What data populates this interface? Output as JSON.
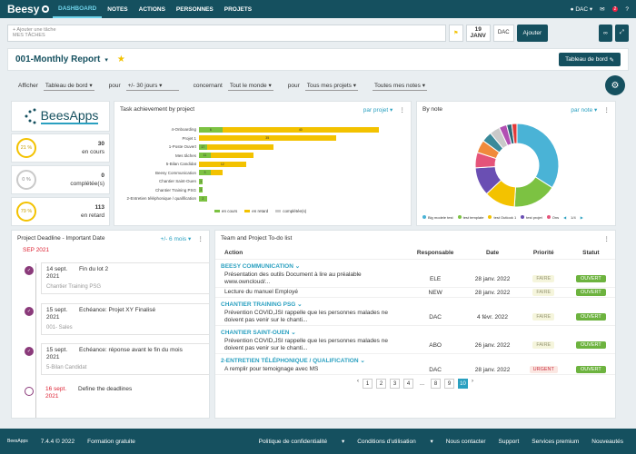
{
  "nav": {
    "logo": "Beesy",
    "items": [
      "DASHBOARD",
      "NOTES",
      "ACTIONS",
      "PERSONNES",
      "PROJETS"
    ],
    "user": "DAC",
    "badge": "2"
  },
  "taskbar": {
    "placeholder": "+ Ajouter une tâche",
    "sub_placeholder": "MES TÂCHES",
    "date_day": "19",
    "date_month": "JANV",
    "owner": "DAC",
    "add_label": "Ajouter"
  },
  "report": {
    "title": "001-Monthly Report",
    "dashboard_btn": "Tableau de bord"
  },
  "filters": {
    "afficher_label": "Afficher",
    "afficher_value": "Tableau de bord",
    "pour_label": "pour",
    "pour_value": "+/- 30 jours",
    "concernant_label": "concernant",
    "concernant_value": "Tout le monde",
    "pour2_label": "pour",
    "projects_value": "Tous mes projets",
    "notes_value": "Toutes mes notes"
  },
  "logo_panel": {
    "brand": "BeesApps"
  },
  "stats": [
    {
      "pct": "21 %",
      "value": "30",
      "label": "en cours",
      "color": "#f3c200"
    },
    {
      "pct": "0 %",
      "value": "0",
      "label": "complétée(s)",
      "color": "#c9c9c9"
    },
    {
      "pct": "79 %",
      "value": "113",
      "label": "en retard",
      "color": "#f3c200"
    }
  ],
  "task_chart": {
    "title": "Task achievement by project",
    "filter": "par projet",
    "legend": [
      "en cours",
      "en retard",
      "complétée(s)"
    ],
    "colors": [
      "#7cc242",
      "#f3c200",
      "#c9c9c9"
    ]
  },
  "chart_data": {
    "type": "bar",
    "orientation": "horizontal",
    "stacked": true,
    "categories": [
      "4-Onboarding",
      "Projet 1",
      "1-Poste Ouvert",
      "Mes tâches",
      "5-Bilan Candidat",
      "Beesy Communication",
      "Chantier Saint-Ouen",
      "Chantier Training PSG",
      "2-Entretien téléphonique / qualification"
    ],
    "series": [
      {
        "name": "en cours",
        "values": [
          6,
          0,
          2,
          3,
          0,
          3,
          1,
          1,
          2
        ]
      },
      {
        "name": "en retard",
        "values": [
          40,
          35,
          17,
          11,
          12,
          3,
          0,
          0,
          0
        ]
      },
      {
        "name": "complétée(s)",
        "values": [
          0,
          0,
          0,
          0,
          0,
          0,
          0,
          0,
          0
        ]
      }
    ],
    "bar_labels": [
      [
        "6",
        "40"
      ],
      [
        "35"
      ],
      [
        "17"
      ],
      [
        "11"
      ],
      [
        "12"
      ],
      [
        "3"
      ],
      [
        "1"
      ],
      [
        "1"
      ],
      [
        "2"
      ]
    ],
    "xlabel": "",
    "ylabel": ""
  },
  "note_chart": {
    "title": "By note",
    "filter": "par note",
    "page": "1/4",
    "legend": [
      "Big modele test",
      "test template",
      "test Outlook 1",
      "test projet",
      "Ons"
    ],
    "slices": [
      {
        "value": 34,
        "color": "#4ab3d6"
      },
      {
        "value": 17,
        "color": "#7cc242"
      },
      {
        "value": 12,
        "color": "#f3c200"
      },
      {
        "value": 11,
        "color": "#6a4fb3"
      },
      {
        "value": 6,
        "color": "#e5547a"
      },
      {
        "value": 5,
        "color": "#f08a3c"
      },
      {
        "value": 4,
        "color": "#3a8a9a"
      },
      {
        "value": 4,
        "color": "#c9c9c9"
      },
      {
        "value": 3,
        "color": "#b24fb3"
      },
      {
        "value": 2,
        "color": "#2d6a7a"
      },
      {
        "value": 2,
        "color": "#e23a3a"
      }
    ]
  },
  "deadlines": {
    "title": "Project Deadline - Important Date",
    "filter": "+/- 6 mois",
    "month": "SEP 2021",
    "items": [
      {
        "date": "14 sept. 2021",
        "text": "Fin du lot 2",
        "sub": "Chantier Training PSG"
      },
      {
        "date": "15 sept. 2021",
        "text": "Echéance: Projet XY Finalisé",
        "sub": "001- Sales"
      },
      {
        "date": "15 sept. 2021",
        "text": "Echéance: réponse avant le fin du mois",
        "sub": "5-Bilan Candidat"
      },
      {
        "date": "16 sept. 2021",
        "text": "Define the deadlines",
        "sub": ""
      }
    ]
  },
  "todo": {
    "title": "Team and Project To-do list",
    "headers": [
      "Action",
      "Responsable",
      "Date",
      "Priorité",
      "Statut"
    ],
    "groups": [
      {
        "name": "BEESY COMMUNICATION",
        "rows": [
          {
            "action": "Présentation des outils Document à lire au préalable  www.owncloud/...",
            "resp": "ELE",
            "date": "28 janv. 2022",
            "prio": "FAIRE",
            "status": "OUVERT"
          },
          {
            "action": "Lecture du manuel Employé",
            "resp": "NEW",
            "date": "28 janv. 2022",
            "prio": "FAIRE",
            "status": "OUVERT"
          }
        ]
      },
      {
        "name": "CHANTIER TRAINING PSG",
        "rows": [
          {
            "action": "Prévention COVID,JSI rappelle que les personnes malades ne doivent pas venir sur le chanti...",
            "resp": "DAC",
            "date": "4 févr. 2022",
            "prio": "FAIRE",
            "status": "OUVERT"
          }
        ]
      },
      {
        "name": "CHANTIER SAINT-OUEN",
        "rows": [
          {
            "action": "Prévention COVID,JSI rappelle que les personnes malades ne doivent pas venir sur le chanti...",
            "resp": "ABO",
            "date": "26 janv. 2022",
            "prio": "FAIRE",
            "status": "OUVERT"
          }
        ]
      },
      {
        "name": "2-ENTRETIEN TÉLÉPHONIQUE / QUALIFICATION",
        "rows": [
          {
            "action": "A remplir pour temoignage avec MS",
            "resp": "DAC",
            "date": "28 janv. 2022",
            "prio": "URGENT",
            "status": "OUVERT"
          }
        ]
      }
    ],
    "pages": [
      "1",
      "2",
      "3",
      "4",
      "...",
      "8",
      "9",
      "10"
    ],
    "active_page": "10"
  },
  "footer": {
    "brand": "BeesApps",
    "version": "7.4.4 © 2022",
    "training": "Formation gratuite",
    "links": [
      "Politique de confidentialité",
      "Conditions d'utilisation",
      "Nous contacter",
      "Support",
      "Services premium",
      "Nouveautés"
    ]
  }
}
